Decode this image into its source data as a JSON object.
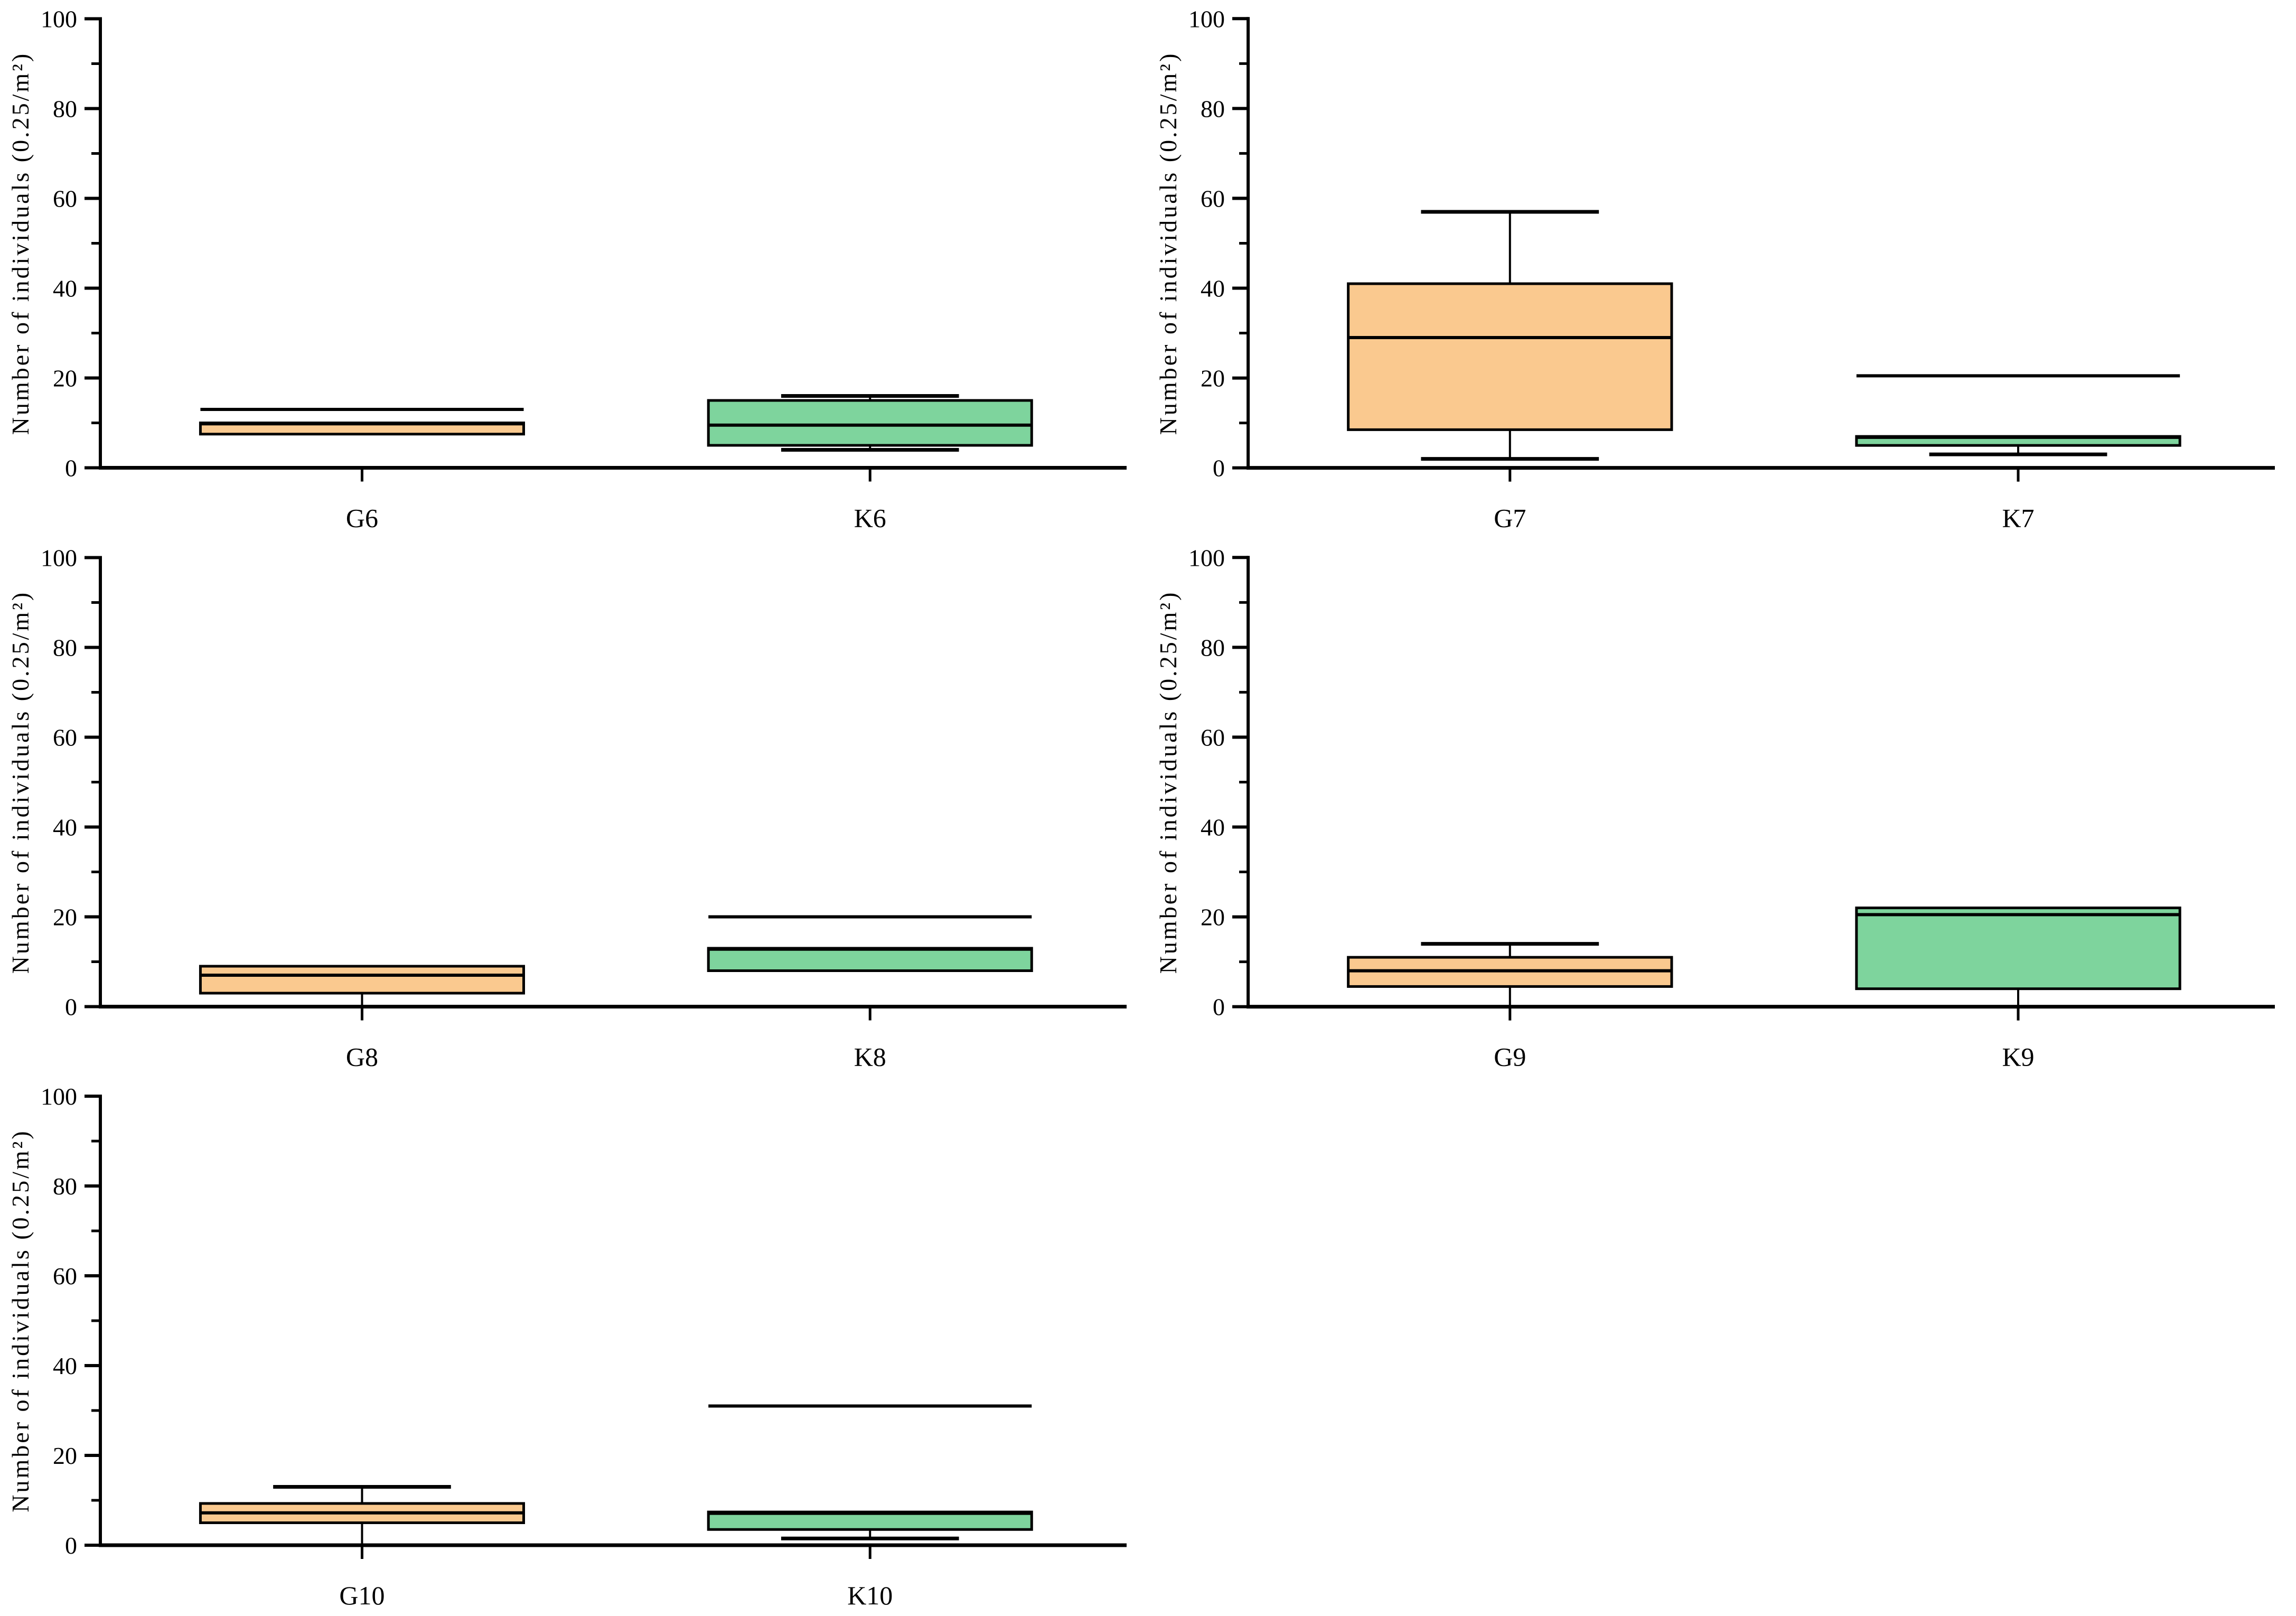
{
  "figure": {
    "background": "#ffffff",
    "axis_color": "#000000",
    "orange_fill": "#FAC98F",
    "green_fill": "#7ED49D",
    "grid_layout": "2 columns x 3 rows, bottom-right cell empty"
  },
  "chart_data": [
    {
      "type": "box",
      "id": "G6-K6",
      "ylabel": "Number of individuals (0.25/m²)",
      "ylim": [
        0,
        100
      ],
      "yticks": [
        0,
        20,
        40,
        60,
        80,
        100
      ],
      "minor_yticks": [
        10,
        30,
        50,
        70,
        90
      ],
      "grid": false,
      "groups": [
        {
          "label": "G6",
          "color": "#FAC98F",
          "q1": 7.5,
          "median": 9.8,
          "q3": 10,
          "whisker_low": null,
          "whisker_high": null,
          "cap_low": false,
          "cap_high": false,
          "max_line": 13
        },
        {
          "label": "K6",
          "color": "#7ED49D",
          "q1": 5,
          "median": 9.5,
          "q3": 15,
          "whisker_low": 4,
          "whisker_high": 16,
          "cap_low": true,
          "cap_high": true,
          "max_line": null
        }
      ]
    },
    {
      "type": "box",
      "id": "G7-K7",
      "ylabel": "Number of individuals (0.25/m²)",
      "ylim": [
        0,
        100
      ],
      "yticks": [
        0,
        20,
        40,
        60,
        80,
        100
      ],
      "minor_yticks": [
        10,
        30,
        50,
        70,
        90
      ],
      "grid": false,
      "groups": [
        {
          "label": "G7",
          "color": "#FAC98F",
          "q1": 8.5,
          "median": 29,
          "q3": 41,
          "whisker_low": 2,
          "whisker_high": 57,
          "cap_low": true,
          "cap_high": true,
          "max_line": null
        },
        {
          "label": "K7",
          "color": "#7ED49D",
          "q1": 5,
          "median": 6.8,
          "q3": 7,
          "whisker_low": 3,
          "whisker_high": null,
          "cap_low": true,
          "cap_high": false,
          "max_line": 20.5
        }
      ]
    },
    {
      "type": "box",
      "id": "G8-K8",
      "ylabel": "Number of individuals (0.25/m²)",
      "ylim": [
        0,
        100
      ],
      "yticks": [
        0,
        20,
        40,
        60,
        80,
        100
      ],
      "minor_yticks": [
        10,
        30,
        50,
        70,
        90
      ],
      "grid": false,
      "groups": [
        {
          "label": "G8",
          "color": "#FAC98F",
          "q1": 3,
          "median": 7,
          "q3": 9,
          "whisker_low": 0,
          "whisker_high": null,
          "cap_low": false,
          "cap_high": false,
          "max_line": null
        },
        {
          "label": "K8",
          "color": "#7ED49D",
          "q1": 8,
          "median": 12.8,
          "q3": 13,
          "whisker_low": null,
          "whisker_high": null,
          "cap_low": false,
          "cap_high": false,
          "max_line": 20
        }
      ]
    },
    {
      "type": "box",
      "id": "G9-K9",
      "ylabel": "Number of individuals (0.25/m²)",
      "ylim": [
        0,
        100
      ],
      "yticks": [
        0,
        20,
        40,
        60,
        80,
        100
      ],
      "minor_yticks": [
        10,
        30,
        50,
        70,
        90
      ],
      "grid": false,
      "groups": [
        {
          "label": "G9",
          "color": "#FAC98F",
          "q1": 4.5,
          "median": 8,
          "q3": 11,
          "whisker_low": 0,
          "whisker_high": 14,
          "cap_low": false,
          "cap_high": true,
          "max_line": null
        },
        {
          "label": "K9",
          "color": "#7ED49D",
          "q1": 4,
          "median": 20.5,
          "q3": 22,
          "whisker_low": 0,
          "whisker_high": null,
          "cap_low": false,
          "cap_high": false,
          "max_line": null
        }
      ]
    },
    {
      "type": "box",
      "id": "G10-K10",
      "ylabel": "Number of individuals (0.25/m²)",
      "ylim": [
        0,
        100
      ],
      "yticks": [
        0,
        20,
        40,
        60,
        80,
        100
      ],
      "minor_yticks": [
        10,
        30,
        50,
        70,
        90
      ],
      "grid": false,
      "groups": [
        {
          "label": "G10",
          "color": "#FAC98F",
          "q1": 5,
          "median": 7.2,
          "q3": 9.3,
          "whisker_low": 0,
          "whisker_high": 13,
          "cap_low": false,
          "cap_high": true,
          "max_line": null
        },
        {
          "label": "K10",
          "color": "#7ED49D",
          "q1": 3.5,
          "median": 7.1,
          "q3": 7.4,
          "whisker_low": 1.5,
          "whisker_high": null,
          "cap_low": true,
          "cap_high": false,
          "max_line": 31
        }
      ]
    }
  ]
}
